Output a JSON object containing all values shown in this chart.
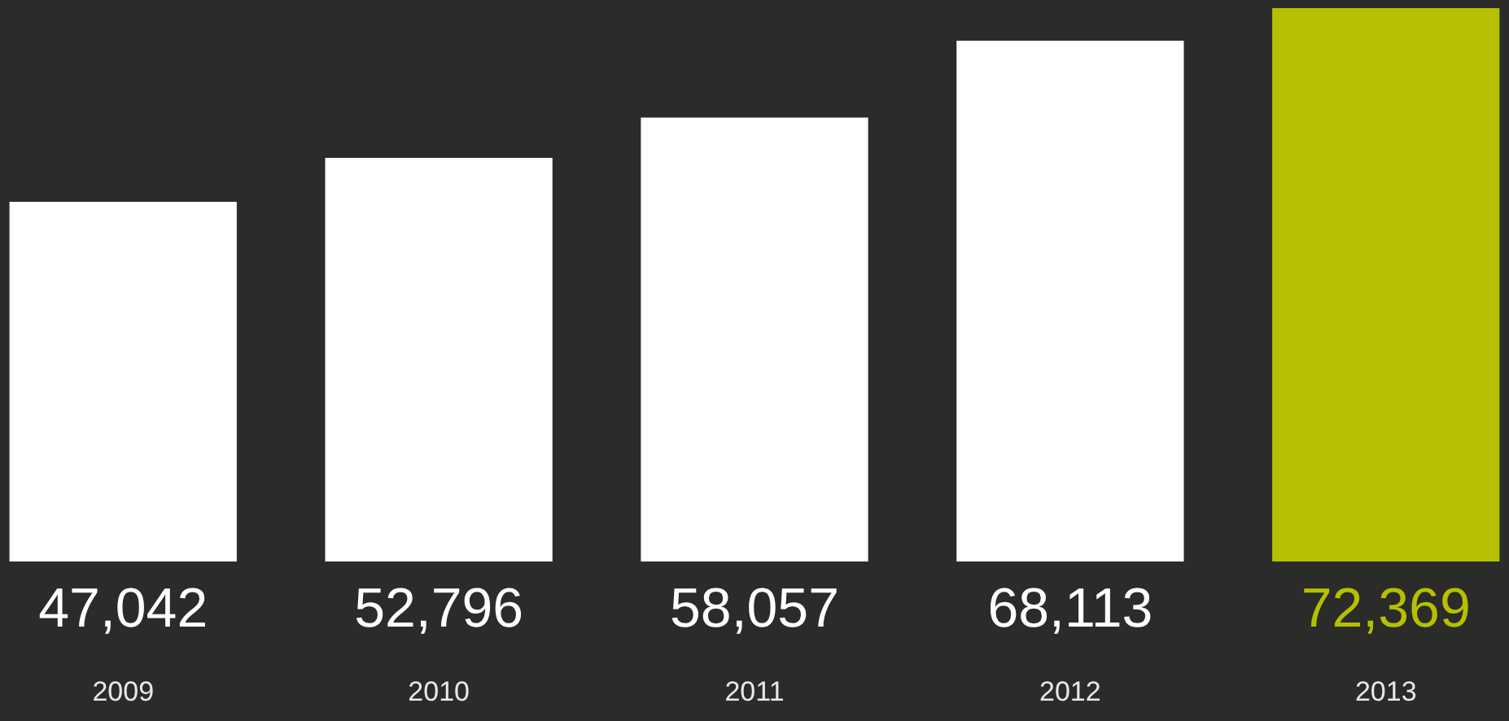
{
  "chart_data": {
    "type": "bar",
    "categories": [
      "2009",
      "2010",
      "2011",
      "2012",
      "2013"
    ],
    "values": [
      47042,
      52796,
      58057,
      68113,
      72369
    ],
    "value_labels": [
      "47,042",
      "52,796",
      "58,057",
      "68,113",
      "72,369"
    ],
    "colors": [
      "#ffffff",
      "#ffffff",
      "#ffffff",
      "#ffffff",
      "#b5c000"
    ],
    "grid": false
  }
}
